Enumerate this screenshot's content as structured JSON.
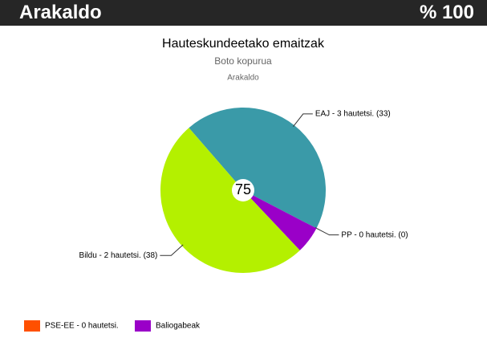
{
  "header": {
    "title": "Arakaldo",
    "percent": "% 100"
  },
  "chart_data": {
    "type": "pie",
    "title": "Hauteskundeetako emaitzak",
    "subtitle": "Boto kopurua",
    "caption": "Arakaldo",
    "center_label": 75,
    "categories": [
      "EAJ - 3 hautetsi. (33)",
      "PP - 0 hautetsi. (0)",
      null,
      "Bildu - 2 hautetsi. (38)"
    ],
    "values": [
      33,
      0,
      4,
      38
    ],
    "colors": [
      "#3a9aa8",
      "#1f4fb4",
      "#9a00c8",
      "#b4f000"
    ],
    "legend": [
      {
        "name": "PSE-EE - 0 hautetsi.",
        "color": "#ff5000"
      },
      {
        "name": "Baliogabeak",
        "color": "#9a00c8"
      }
    ]
  }
}
